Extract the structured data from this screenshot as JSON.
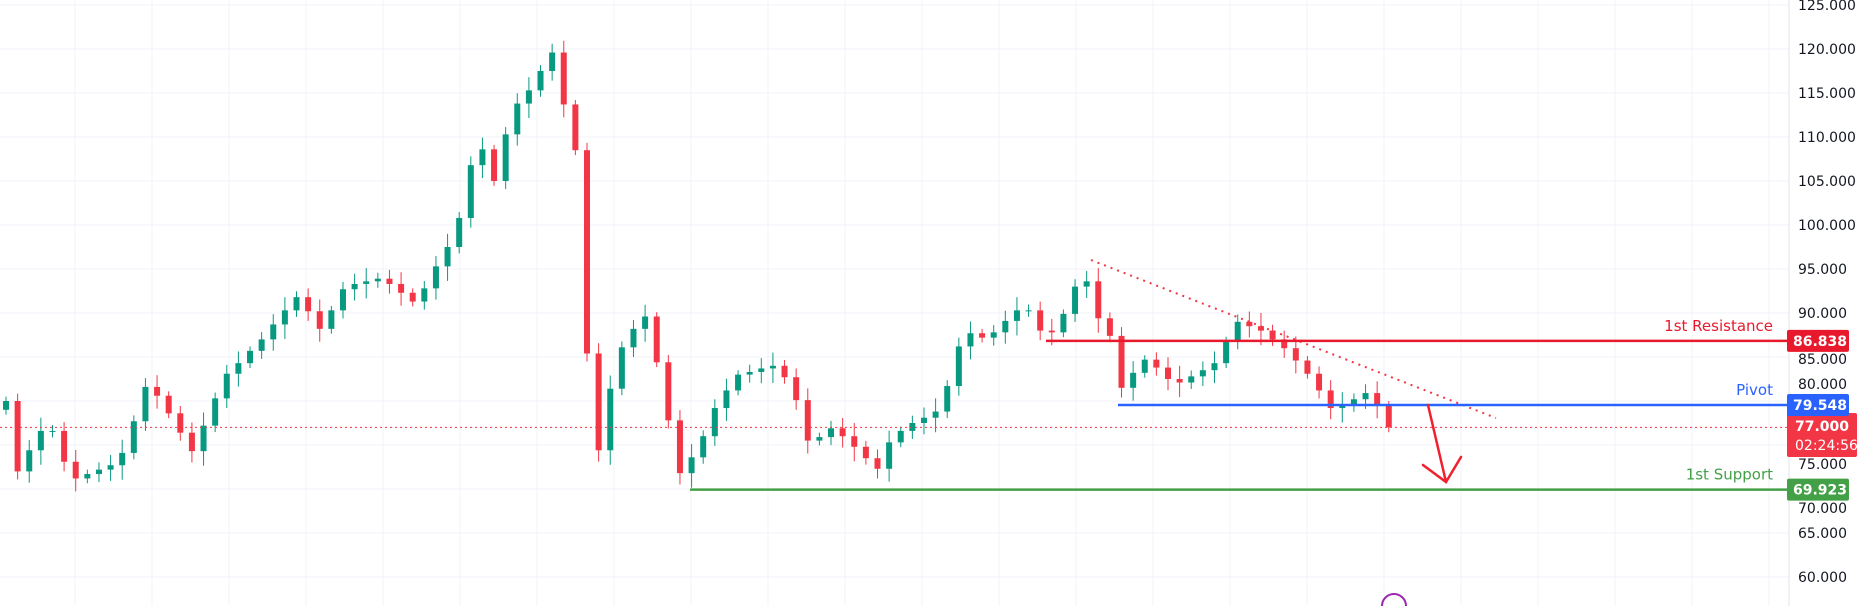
{
  "chart_data": {
    "type": "candlestick",
    "y_axis": {
      "position": "right",
      "ticks": [
        60,
        65,
        70,
        75,
        80,
        85,
        90,
        95,
        100,
        105,
        110,
        115,
        120,
        125
      ],
      "tick_labels": [
        "60.000",
        "65.000",
        "70.000",
        "75.000",
        "80.000",
        "85.000",
        "90.000",
        "95.000",
        "100.000",
        "105.000",
        "110.000",
        "115.000",
        "120.000",
        "125.000"
      ],
      "ylim": [
        57,
        125.5
      ]
    },
    "grid": true,
    "colors": {
      "up": "#089981",
      "down": "#f23645"
    },
    "first_open": 79,
    "closes": [
      80,
      72,
      74.4,
      76.6,
      76.6,
      73.1,
      71.2,
      71.7,
      72.2,
      72.7,
      74.1,
      77.7,
      81.6,
      80.6,
      78.6,
      76.4,
      74.3,
      77.2,
      80.3,
      83.1,
      84.3,
      85.7,
      87,
      88.7,
      90.3,
      91.8,
      90.2,
      88.2,
      90.3,
      92.7,
      93.3,
      93.6,
      93.9,
      93.3,
      92.3,
      91.3,
      92.8,
      95.3,
      97.5,
      100.8,
      106.8,
      108.6,
      105,
      110.3,
      113.8,
      115.3,
      117.5,
      119.6,
      113.7,
      108.5,
      85.4,
      74.4,
      81.4,
      86.1,
      88.2,
      89.6,
      84.4,
      77.8,
      71.8,
      73.6,
      76,
      79.2,
      81.2,
      83,
      83.3,
      83.7,
      84,
      82.7,
      80.1,
      75.5,
      75.9,
      76.9,
      76,
      74.8,
      73.5,
      72.3,
      75.3,
      76.6,
      77.5,
      78.1,
      78.8,
      81.7,
      86.2,
      87.7,
      87.2,
      87.8,
      89.1,
      90.3,
      90.3,
      88,
      87.8,
      89.9,
      93,
      93.6,
      89.4,
      87.4,
      81.5,
      83.2,
      84.7,
      83.8,
      82.5,
      82.1,
      82.8,
      83.5,
      84.3,
      86.8,
      89,
      88.5,
      88,
      87,
      86,
      84.6,
      83.1,
      81.2,
      79.2,
      79.5,
      80.2,
      80.9,
      79.5,
      77
    ],
    "levels": [
      {
        "name": "1st Resistance",
        "value": 86.838,
        "value_label": "86.838",
        "color": "#e8192c"
      },
      {
        "name": "Pivot",
        "value": 79.548,
        "value_label": "79.548",
        "color": "#2962ff"
      },
      {
        "name": "1st Support",
        "value": 69.923,
        "value_label": "69.923",
        "color": "#43a047"
      }
    ],
    "last_price": {
      "value": 77.0,
      "label": "77.000",
      "countdown": "02:24:56",
      "color": "#f23645"
    },
    "annotations": [
      "descending dotted trendline from peak",
      "red arrow pointing down toward 1st Support"
    ]
  }
}
